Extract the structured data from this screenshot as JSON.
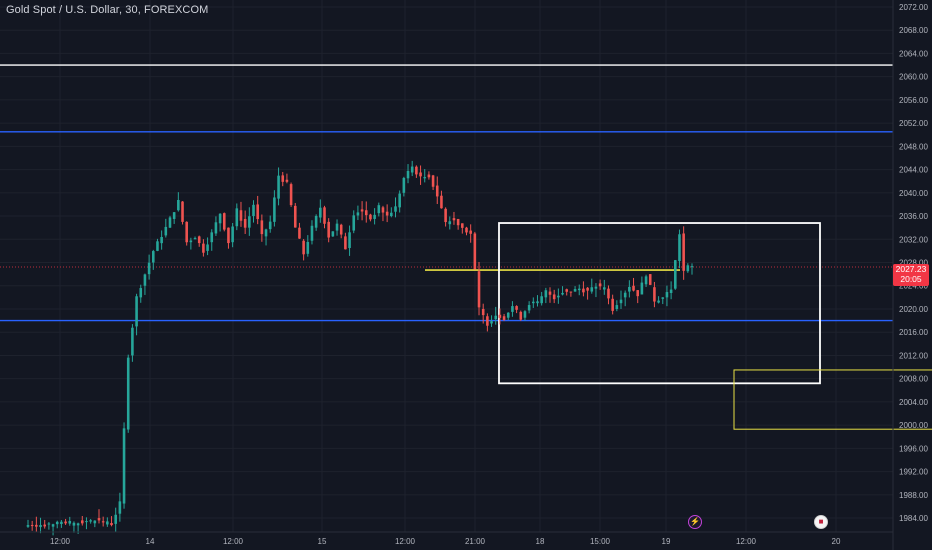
{
  "header": {
    "title": "Gold Spot / U.S. Dollar, 30, FOREXCOM"
  },
  "price_tag": {
    "price": "2027.23",
    "countdown": "20:05"
  },
  "events": {
    "bolt_icon": "lightning-icon",
    "flag_icon": "us-flag-icon"
  },
  "colors": {
    "background": "#131722",
    "up": "#26a69a",
    "down": "#ef5350",
    "grid": "#1e222d",
    "axis_text": "#b2b5be",
    "white_line": "#ffffff",
    "blue_line": "#2962ff",
    "yellow_line": "#e8e045",
    "last_price": "#f23645"
  },
  "chart_data": {
    "type": "candlestick",
    "title": "Gold Spot / U.S. Dollar, 30, FOREXCOM",
    "ylim": [
      1981.6,
      2073.2
    ],
    "y_ticks": [
      1984,
      1988,
      1992,
      1996,
      2000,
      2004,
      2008,
      2012,
      2016,
      2020,
      2024,
      2028,
      2032,
      2036,
      2040,
      2044,
      2048,
      2052,
      2056,
      2060,
      2064,
      2068,
      2072
    ],
    "x_ticks": [
      "12:00",
      "14",
      "12:00",
      "15",
      "12:00",
      "21:00",
      "18",
      "15:00",
      "19",
      "12:00",
      "20"
    ],
    "last_price": 2027.23,
    "anchors": [
      [
        0,
        1982.8
      ],
      [
        8,
        1983.0
      ],
      [
        12,
        1983.2
      ],
      [
        16,
        1983.6
      ],
      [
        20,
        1983.0
      ],
      [
        22,
        1986.5
      ],
      [
        24,
        2012.0
      ],
      [
        26,
        2022.0
      ],
      [
        28,
        2026.0
      ],
      [
        30,
        2030.0
      ],
      [
        33,
        2034.0
      ],
      [
        36,
        2038.5
      ],
      [
        38,
        2031.5
      ],
      [
        40,
        2032.5
      ],
      [
        42,
        2030.0
      ],
      [
        44,
        2033.0
      ],
      [
        46,
        2036.5
      ],
      [
        48,
        2031.5
      ],
      [
        50,
        2037.0
      ],
      [
        52,
        2034.0
      ],
      [
        54,
        2038.0
      ],
      [
        56,
        2032.5
      ],
      [
        58,
        2035.0
      ],
      [
        60,
        2043.0
      ],
      [
        62,
        2041.5
      ],
      [
        64,
        2034.0
      ],
      [
        66,
        2029.5
      ],
      [
        68,
        2034.0
      ],
      [
        70,
        2037.5
      ],
      [
        72,
        2032.5
      ],
      [
        74,
        2034.5
      ],
      [
        76,
        2030.5
      ],
      [
        78,
        2036.5
      ],
      [
        80,
        2037.0
      ],
      [
        82,
        2035.5
      ],
      [
        84,
        2037.5
      ],
      [
        86,
        2036.0
      ],
      [
        88,
        2037.5
      ],
      [
        90,
        2042.5
      ],
      [
        92,
        2044.5
      ],
      [
        94,
        2042.5
      ],
      [
        96,
        2043.0
      ],
      [
        98,
        2039.5
      ],
      [
        100,
        2035.0
      ],
      [
        102,
        2035.5
      ],
      [
        104,
        2034.0
      ],
      [
        106,
        2033.0
      ],
      [
        108,
        2020.0
      ],
      [
        110,
        2017.5
      ],
      [
        112,
        2019.0
      ],
      [
        114,
        2018.5
      ],
      [
        116,
        2020.5
      ],
      [
        118,
        2018.5
      ],
      [
        120,
        2021.0
      ],
      [
        122,
        2021.0
      ],
      [
        124,
        2023.0
      ],
      [
        126,
        2022.0
      ],
      [
        128,
        2023.0
      ],
      [
        130,
        2023.0
      ],
      [
        132,
        2023.5
      ],
      [
        134,
        2023.0
      ],
      [
        136,
        2024.0
      ],
      [
        138,
        2023.5
      ],
      [
        140,
        2020.0
      ],
      [
        142,
        2022.0
      ],
      [
        144,
        2024.0
      ],
      [
        146,
        2022.5
      ],
      [
        148,
        2026.0
      ],
      [
        150,
        2021.5
      ],
      [
        152,
        2022.0
      ],
      [
        154,
        2023.5
      ],
      [
        156,
        2033.0
      ],
      [
        157,
        2026.5
      ],
      [
        158,
        2027.2
      ],
      [
        159,
        2027.23
      ]
    ],
    "count": 160,
    "support_resistance_lines": [
      {
        "kind": "horizontal",
        "color": "white",
        "price": 2062.0
      },
      {
        "kind": "horizontal",
        "color": "blue",
        "price": 2050.5
      },
      {
        "kind": "horizontal",
        "color": "blue",
        "price": 2018.0
      },
      {
        "kind": "segment",
        "color": "yellow",
        "price": 2026.7
      }
    ],
    "zones": [
      {
        "color": "white",
        "price_top": 2034.8,
        "price_bottom": 2007.2
      },
      {
        "color": "yellow",
        "price_top": 2009.5,
        "price_bottom": 1999.3
      }
    ]
  }
}
